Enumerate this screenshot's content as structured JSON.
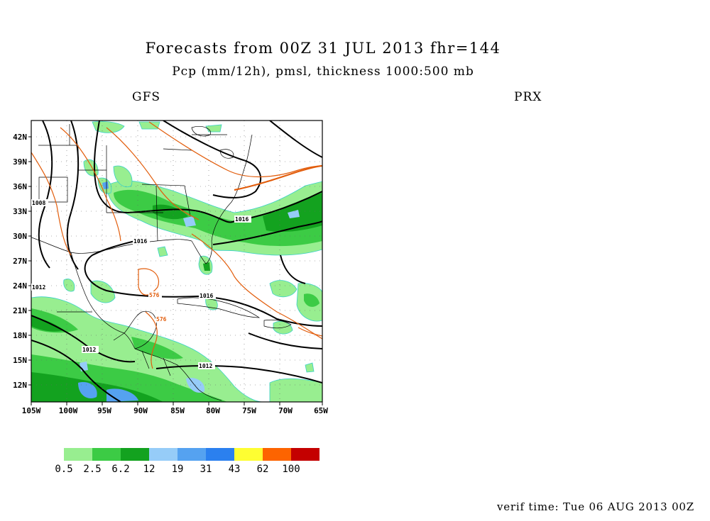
{
  "header": {
    "title": "Forecasts from 00Z 31 JUL 2013   fhr=144",
    "subtitle": "Pcp (mm/12h), pmsl, thickness 1000:500 mb",
    "model": "GFS",
    "station": "PRX"
  },
  "map": {
    "lat_labels": [
      "42N",
      "39N",
      "36N",
      "33N",
      "30N",
      "27N",
      "24N",
      "21N",
      "18N",
      "15N",
      "12N"
    ],
    "lon_labels": [
      "105W",
      "100W",
      "95W",
      "90W",
      "85W",
      "80W",
      "75W",
      "70W",
      "65W"
    ],
    "isobar_labels": [
      "1008",
      "1016",
      "1016",
      "1012",
      "1016",
      "1012",
      "1012"
    ],
    "thickness_labels": [
      "576",
      "576"
    ],
    "colors": {
      "light_green": "#98ee90",
      "green": "#3ccb45",
      "dark_green": "#13a21f",
      "isobar": "#000000",
      "thickness": "#e25d0c"
    }
  },
  "legend": {
    "values": [
      "0.5",
      "2.5",
      "6.2",
      "12",
      "19",
      "31",
      "43",
      "62",
      "100"
    ],
    "colors": [
      "#98ee90",
      "#3ccb45",
      "#13a21f",
      "#96ccf8",
      "#55a2f0",
      "#2b80ef",
      "#fefe32",
      "#fd6400",
      "#c40000"
    ]
  },
  "footer": {
    "verif_time": "verif time: Tue 06 AUG 2013 00Z"
  }
}
